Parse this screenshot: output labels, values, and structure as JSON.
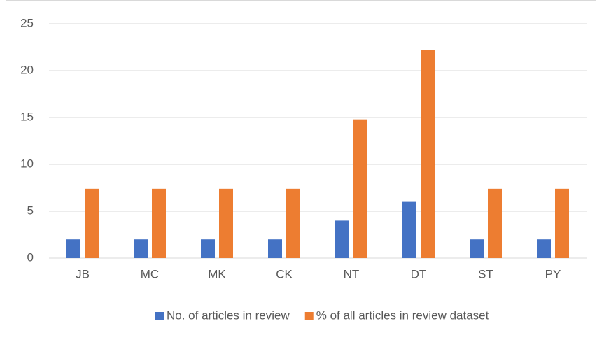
{
  "chart_data": {
    "type": "bar",
    "categories": [
      "JB",
      "MC",
      "MK",
      "CK",
      "NT",
      "DT",
      "ST",
      "PY"
    ],
    "series": [
      {
        "name": "No. of articles in review",
        "color": "#4472c4",
        "values": [
          2,
          2,
          2,
          2,
          4,
          6,
          2,
          2
        ]
      },
      {
        "name": "% of all articles in review dataset",
        "color": "#ed7d31",
        "values": [
          7.4,
          7.4,
          7.4,
          7.4,
          14.8,
          22.2,
          7.4,
          7.4
        ]
      }
    ],
    "ylim": [
      0,
      25
    ],
    "yticks": [
      0,
      5,
      10,
      15,
      20,
      25
    ],
    "grid": true,
    "legend": "bottom"
  }
}
